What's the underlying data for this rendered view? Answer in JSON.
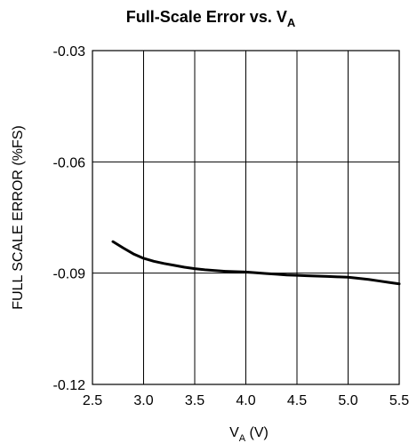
{
  "chart_data": {
    "type": "line",
    "title": {
      "main": "Full-Scale Error vs. V",
      "subscript": "A"
    },
    "xlabel": {
      "main": "V",
      "subscript": "A",
      "suffix": " (V)"
    },
    "ylabel": "FULL SCALE ERROR (%FS)",
    "xlim": [
      2.5,
      5.5
    ],
    "ylim": [
      -0.12,
      -0.03
    ],
    "x_ticks": [
      2.5,
      3.0,
      3.5,
      4.0,
      4.5,
      5.0,
      5.5
    ],
    "x_tick_labels": [
      "2.5",
      "3.0",
      "3.5",
      "4.0",
      "4.5",
      "5.0",
      "5.5"
    ],
    "y_ticks": [
      -0.12,
      -0.09,
      -0.06,
      -0.03
    ],
    "y_tick_labels": [
      "-0.12",
      "-0.09",
      "-0.06",
      "-0.03"
    ],
    "grid": true,
    "series": [
      {
        "color": "#000000",
        "x": [
          2.7,
          2.8,
          2.9,
          3.0,
          3.1,
          3.2,
          3.3,
          3.4,
          3.5,
          3.6,
          3.7,
          3.8,
          3.9,
          4.0,
          4.1,
          4.2,
          4.3,
          4.4,
          4.5,
          4.6,
          4.7,
          4.8,
          4.9,
          5.0,
          5.1,
          5.2,
          5.3,
          5.4,
          5.5
        ],
        "values": [
          -0.0815,
          -0.0832,
          -0.0848,
          -0.086,
          -0.0868,
          -0.0874,
          -0.0879,
          -0.0884,
          -0.0888,
          -0.0891,
          -0.0893,
          -0.0895,
          -0.0896,
          -0.0897,
          -0.0899,
          -0.0901,
          -0.0903,
          -0.0905,
          -0.0906,
          -0.0907,
          -0.0908,
          -0.0909,
          -0.091,
          -0.0911,
          -0.0914,
          -0.0917,
          -0.0921,
          -0.0925,
          -0.0929
        ]
      }
    ]
  }
}
